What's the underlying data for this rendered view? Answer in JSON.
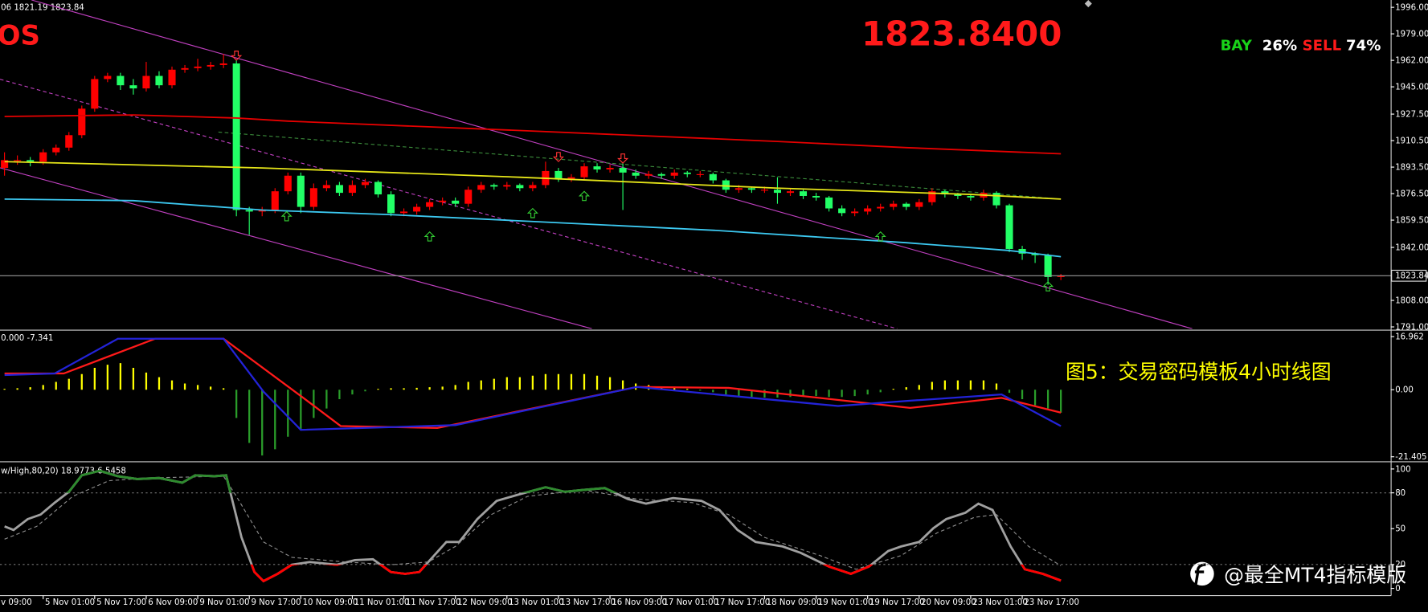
{
  "chart_data": [
    {
      "type": "candlestick",
      "header": "06 1821.19 1823.84",
      "symbol": "OS",
      "price_label": "1823.8400",
      "sentiment": {
        "categories": [
          "BAY",
          "SELL"
        ],
        "values": [
          26,
          74
        ],
        "value_labels": [
          "26%",
          "74%"
        ],
        "colors": [
          "#19d219",
          "#ff1a1a"
        ]
      },
      "xlim": [
        -0.35,
        107.6
      ],
      "ylim": [
        1789.8,
        2000.7
      ],
      "yticks": [
        {
          "value": 1996,
          "label": "1996.00"
        },
        {
          "value": 1979,
          "label": "1979.00"
        },
        {
          "value": 1962,
          "label": "1962.00"
        },
        {
          "value": 1945,
          "label": "1945.00"
        },
        {
          "value": 1927.5,
          "label": "1927.50"
        },
        {
          "value": 1910.5,
          "label": "1910.50"
        },
        {
          "value": 1893.5,
          "label": "1893.50"
        },
        {
          "value": 1876.5,
          "label": "1876.50"
        },
        {
          "value": 1859.5,
          "label": "1859.50"
        },
        {
          "value": 1842,
          "label": "1842.00"
        },
        {
          "value": 1808,
          "label": "1808.00"
        },
        {
          "value": 1791,
          "label": "1791.00"
        }
      ],
      "up_color": "#ff0000",
      "down_color": "#22ff66",
      "opens": [
        1893,
        1898,
        1898,
        1897,
        1903,
        1906,
        1914,
        1931,
        1950,
        1952,
        1946,
        1944,
        1952,
        1946,
        1956,
        1957,
        1958,
        1959,
        1960,
        1866,
        1865,
        1866,
        1878,
        1888,
        1868,
        1880,
        1882,
        1877,
        1882,
        1884,
        1876,
        1864,
        1865,
        1868,
        1871,
        1872,
        1870,
        1879,
        1882,
        1881,
        1882,
        1880,
        1882,
        1891,
        1886,
        1887,
        1894,
        1892,
        1893,
        1890,
        1888,
        1889,
        1888,
        1890,
        1889,
        1889,
        1885,
        1879,
        1880,
        1879,
        1879,
        1877,
        1878,
        1875,
        1874,
        1867,
        1864,
        1865,
        1867,
        1868,
        1870,
        1868,
        1871,
        1878,
        1876,
        1875,
        1874,
        1877,
        1869,
        1841,
        1838,
        1837,
        1823
      ],
      "highs": [
        1903,
        1901,
        1900,
        1905,
        1908,
        1916,
        1933,
        1952,
        1954,
        1954,
        1950,
        1961,
        1955,
        1958,
        1959,
        1963,
        1961,
        1966,
        1962,
        1868,
        1868,
        1880,
        1890,
        1890,
        1883,
        1885,
        1884,
        1885,
        1886,
        1885,
        1878,
        1867,
        1870,
        1873,
        1874,
        1874,
        1881,
        1884,
        1883,
        1884,
        1883,
        1884,
        1897,
        1893,
        1889,
        1896,
        1896,
        1895,
        1896,
        1892,
        1891,
        1890,
        1892,
        1891,
        1891,
        1890,
        1886,
        1882,
        1881,
        1881,
        1887,
        1880,
        1879,
        1877,
        1875,
        1869,
        1867,
        1869,
        1870,
        1872,
        1871,
        1873,
        1880,
        1879,
        1877,
        1876,
        1879,
        1878,
        1870,
        1843,
        1839,
        1838,
        1825
      ],
      "lows": [
        1888,
        1895,
        1894,
        1895,
        1901,
        1904,
        1912,
        1929,
        1948,
        1943,
        1940,
        1942,
        1944,
        1944,
        1954,
        1955,
        1956,
        1957,
        1862,
        1850,
        1862,
        1864,
        1876,
        1864,
        1866,
        1878,
        1875,
        1875,
        1880,
        1874,
        1862,
        1862,
        1863,
        1866,
        1869,
        1868,
        1868,
        1877,
        1879,
        1879,
        1878,
        1878,
        1880,
        1884,
        1884,
        1885,
        1890,
        1890,
        1866,
        1886,
        1886,
        1886,
        1886,
        1887,
        1887,
        1883,
        1877,
        1877,
        1877,
        1877,
        1870,
        1875,
        1873,
        1872,
        1865,
        1862,
        1862,
        1863,
        1865,
        1866,
        1866,
        1866,
        1869,
        1874,
        1873,
        1872,
        1872,
        1867,
        1839,
        1834,
        1832,
        1818,
        1821
      ],
      "closes": [
        1898,
        1898,
        1897,
        1903,
        1906,
        1914,
        1931,
        1950,
        1952,
        1946,
        1944,
        1952,
        1946,
        1956,
        1957,
        1958,
        1959,
        1960,
        1866,
        1865,
        1866,
        1878,
        1888,
        1868,
        1880,
        1882,
        1877,
        1882,
        1884,
        1876,
        1864,
        1865,
        1868,
        1871,
        1872,
        1870,
        1879,
        1882,
        1881,
        1882,
        1880,
        1882,
        1891,
        1886,
        1887,
        1894,
        1892,
        1893,
        1890,
        1888,
        1889,
        1888,
        1890,
        1889,
        1889,
        1885,
        1879,
        1880,
        1879,
        1879,
        1877,
        1878,
        1875,
        1874,
        1867,
        1864,
        1865,
        1867,
        1868,
        1870,
        1868,
        1871,
        1878,
        1876,
        1875,
        1874,
        1877,
        1869,
        1841,
        1838,
        1837,
        1823,
        1823.84
      ],
      "series": [
        {
          "color": "#e60000",
          "x": [
            0,
            10,
            18,
            22,
            40,
            60,
            70,
            82
          ],
          "values": [
            1926,
            1927,
            1925,
            1923,
            1917,
            1910,
            1906,
            1902
          ]
        },
        {
          "color": "#e6e619",
          "x": [
            0,
            20,
            40,
            60,
            75,
            82
          ],
          "values": [
            1897,
            1893,
            1887,
            1880,
            1876,
            1873
          ]
        },
        {
          "color": "#3cc8f0",
          "x": [
            0,
            10,
            20,
            30,
            40,
            55,
            70,
            78,
            82
          ],
          "values": [
            1873,
            1872,
            1866,
            1863,
            1859,
            1853,
            1845,
            1840,
            1836
          ]
        }
      ],
      "trendlines": [
        {
          "color": "#c040c0",
          "dash": false,
          "x": [
            2.1,
            92.2
          ],
          "values": [
            2000.7,
            1789.8
          ]
        },
        {
          "color": "#c040c0",
          "dash": false,
          "x": [
            -0.35,
            45.6
          ],
          "values": [
            1893.1,
            1789.8
          ]
        },
        {
          "color": "#c040c0",
          "dash": true,
          "x": [
            -0.35,
            69.3
          ],
          "values": [
            1949.9,
            1789.8
          ]
        },
        {
          "color": "#3a8a3a",
          "dash": true,
          "x": [
            16.6,
            82
          ],
          "values": [
            1916,
            1873
          ]
        }
      ],
      "up_arrows": {
        "color": "#33cc33",
        "x": [
          21.9,
          33,
          41,
          45,
          68,
          81
        ],
        "values": [
          1862,
          1849,
          1864,
          1875,
          1849,
          1817
        ]
      },
      "down_arrows": {
        "color": "#ff3333",
        "x": [
          18,
          43,
          48
        ],
        "values": [
          1965,
          1900,
          1899
        ]
      },
      "last": 1823.84
    },
    {
      "type": "bar",
      "header": "0.000 -7.341",
      "annotation": "图5：交易密码模板4小时线图",
      "xlim": [
        -0.35,
        107.6
      ],
      "ylim": [
        -22.7,
        18.6
      ],
      "yticks": [
        16.962,
        {
          "value": 0,
          "label": "0.00"
        },
        -21.405
      ],
      "positive_color": "#ffff00",
      "negative_color": "#2a9d2a",
      "values": [
        0.3,
        0.5,
        0.8,
        1.5,
        2.5,
        3.5,
        5,
        7,
        8,
        8.5,
        7,
        5.5,
        4,
        3,
        2,
        1.5,
        1,
        0.5,
        -9,
        -17,
        -21,
        -19,
        -15,
        -13,
        -9,
        -6,
        -3,
        -1.5,
        -0.5,
        0.3,
        0.5,
        0.5,
        0.6,
        0.8,
        1,
        1.5,
        2.5,
        3,
        3.5,
        4,
        4,
        4.5,
        5,
        5,
        5,
        5,
        4.5,
        4,
        3,
        2,
        1.5,
        1,
        0.5,
        0.3,
        -0.3,
        -0.8,
        -1.5,
        -2,
        -2.3,
        -2.5,
        -2.5,
        -2.3,
        -2,
        -2,
        -2.3,
        -2.3,
        -2,
        -1.5,
        -0.8,
        0.3,
        0.8,
        1.5,
        2.5,
        3,
        3,
        3,
        3,
        2,
        -1,
        -3,
        -5,
        -6,
        -7.341
      ],
      "series": [
        {
          "color": "#ff1a1a",
          "x": [
            0,
            4.6,
            11.7,
            17,
            23,
            26.1,
            33.6,
            49.1,
            56.2,
            70.3,
            77.4,
            82
          ],
          "values": [
            5.2,
            5.2,
            16.3,
            16.3,
            -2,
            -11.6,
            -12.2,
            0.9,
            0.6,
            -5.8,
            -2.6,
            -7.3
          ]
        },
        {
          "color": "#2323d8",
          "x": [
            0,
            3.9,
            8.8,
            17,
            20.1,
            23,
            35,
            49.1,
            64.7,
            70.3,
            77.4,
            82
          ],
          "values": [
            4.7,
            5.2,
            16.3,
            16.3,
            -0.6,
            -12.8,
            -11.3,
            0.9,
            -5.2,
            -3.5,
            -1.5,
            -11.6
          ]
        }
      ]
    },
    {
      "type": "line",
      "header": "w/High,80,20) 18.9773 6.5458",
      "watermark": "@最全MT4指标模版",
      "xlim": [
        -0.35,
        107.6
      ],
      "ylim": [
        -5.3,
        105.3
      ],
      "yticks": [
        100,
        80,
        50,
        20,
        0
      ],
      "levels": [
        {
          "value": 80,
          "side": "above",
          "color": "#2e8b2e"
        },
        {
          "value": 20,
          "side": "below",
          "color": "#ff0000"
        }
      ],
      "series": [
        {
          "color": "#a0a0a0",
          "x": [
            0,
            0.7,
            1.8,
            2.8,
            3.9,
            5,
            6,
            7.4,
            8.8,
            10.3,
            12,
            13.8,
            14.8,
            16.3,
            17.2,
            18.4,
            19.4,
            20.1,
            21.2,
            22.3,
            23.7,
            25.8,
            27.2,
            28.6,
            30,
            31.1,
            32.2,
            34.3,
            35.3,
            36.7,
            38.2,
            39.9,
            42,
            43.5,
            44.9,
            46.6,
            48.4,
            49.8,
            51.9,
            54.1,
            55.5,
            56.9,
            58.3,
            60.4,
            61.8,
            64,
            65.7,
            67.1,
            68.6,
            69.6,
            71,
            72.1,
            73.1,
            74.6,
            75.6,
            76.7,
            78.1,
            79.2,
            80.6,
            82
          ],
          "values": [
            51.9,
            48.9,
            58,
            61.8,
            71.8,
            80.9,
            94.7,
            98.5,
            93.9,
            91.6,
            92.4,
            88.5,
            94.7,
            93.9,
            94.7,
            42.7,
            13.7,
            6.1,
            12.2,
            19.8,
            22.1,
            19.8,
            23.7,
            24.4,
            13.7,
            12.2,
            13.7,
            38.9,
            38.9,
            58,
            73.3,
            78.6,
            84.7,
            80.9,
            82.4,
            84,
            74.8,
            71,
            75.6,
            73.3,
            65.6,
            48.9,
            38.9,
            35.1,
            29.8,
            18.3,
            12.2,
            18.3,
            31.3,
            35.1,
            38.9,
            50.4,
            58,
            63.4,
            71,
            65.6,
            35.1,
            16,
            12.2,
            6.5
          ]
        },
        {
          "color": "#8c8c8c",
          "dash": true,
          "x": [
            0,
            2.5,
            5.3,
            8.1,
            11,
            17,
            18,
            20.1,
            22.3,
            26.5,
            30,
            32.9,
            35,
            37.8,
            40.6,
            44.9,
            49.1,
            53.4,
            56.2,
            59,
            63.3,
            66.1,
            69.6,
            72.4,
            75.3,
            77,
            79.5,
            82
          ],
          "values": [
            41.2,
            51.9,
            77.1,
            90.1,
            92.4,
            93.9,
            77.1,
            38.9,
            26,
            22.1,
            19.8,
            22.1,
            35.1,
            61.8,
            77.1,
            82.4,
            74.8,
            71.8,
            61.8,
            42.7,
            27.5,
            16,
            27.5,
            46.6,
            59.5,
            61.8,
            35.1,
            19
          ]
        }
      ],
      "xticks": [
        {
          "value": -1,
          "label": "v 09:00"
        },
        {
          "value": 3,
          "label": "5 Nov 01:00"
        },
        {
          "value": 7,
          "label": "5 Nov 17:00"
        },
        {
          "value": 11,
          "label": "6 Nov 09:00"
        },
        {
          "value": 15,
          "label": "9 Nov 01:00"
        },
        {
          "value": 19,
          "label": "9 Nov 17:00"
        },
        {
          "value": 23,
          "label": "10 Nov 09:00"
        },
        {
          "value": 27,
          "label": "11 Nov 01:00"
        },
        {
          "value": 31,
          "label": "11 Nov 17:00"
        },
        {
          "value": 35,
          "label": "12 Nov 09:00"
        },
        {
          "value": 39,
          "label": "13 Nov 01:00"
        },
        {
          "value": 43,
          "label": "13 Nov 17:00"
        },
        {
          "value": 47,
          "label": "16 Nov 09:00"
        },
        {
          "value": 51,
          "label": "17 Nov 01:00"
        },
        {
          "value": 55,
          "label": "17 Nov 17:00"
        },
        {
          "value": 59,
          "label": "18 Nov 09:00"
        },
        {
          "value": 63,
          "label": "19 Nov 01:00"
        },
        {
          "value": 67,
          "label": "19 Nov 17:00"
        },
        {
          "value": 71,
          "label": "20 Nov 09:00"
        },
        {
          "value": 75,
          "label": "23 Nov 01:00"
        },
        {
          "value": 79,
          "label": "23 Nov 17:00"
        }
      ]
    }
  ]
}
